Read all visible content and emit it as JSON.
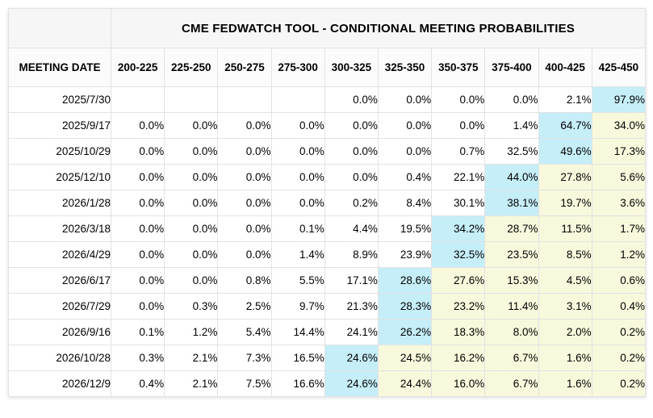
{
  "title": "CME FEDWATCH TOOL - CONDITIONAL MEETING PROBABILITIES",
  "colors": {
    "highlight_blue": "#c6eef9",
    "highlight_yellow": "#f8f8dc",
    "header_bg": "#f6f6f6",
    "grid_line": "#e2e2e2"
  },
  "table": {
    "corner_label": "MEETING DATE",
    "rate_ranges": [
      "200-225",
      "225-250",
      "250-275",
      "275-300",
      "300-325",
      "325-350",
      "350-375",
      "375-400",
      "400-425",
      "425-450"
    ],
    "rows": [
      {
        "date": "2025/7/30",
        "values": [
          "",
          "",
          "",
          "",
          "0.0%",
          "0.0%",
          "0.0%",
          "0.0%",
          "2.1%",
          "97.9%"
        ],
        "highlights": [
          "none",
          "none",
          "none",
          "none",
          "none",
          "none",
          "none",
          "none",
          "none",
          "blue"
        ]
      },
      {
        "date": "2025/9/17",
        "values": [
          "0.0%",
          "0.0%",
          "0.0%",
          "0.0%",
          "0.0%",
          "0.0%",
          "0.0%",
          "1.4%",
          "64.7%",
          "34.0%"
        ],
        "highlights": [
          "none",
          "none",
          "none",
          "none",
          "none",
          "none",
          "none",
          "none",
          "blue",
          "yellow"
        ]
      },
      {
        "date": "2025/10/29",
        "values": [
          "0.0%",
          "0.0%",
          "0.0%",
          "0.0%",
          "0.0%",
          "0.0%",
          "0.7%",
          "32.5%",
          "49.6%",
          "17.3%"
        ],
        "highlights": [
          "none",
          "none",
          "none",
          "none",
          "none",
          "none",
          "none",
          "none",
          "blue",
          "yellow"
        ]
      },
      {
        "date": "2025/12/10",
        "values": [
          "0.0%",
          "0.0%",
          "0.0%",
          "0.0%",
          "0.0%",
          "0.4%",
          "22.1%",
          "44.0%",
          "27.8%",
          "5.6%"
        ],
        "highlights": [
          "none",
          "none",
          "none",
          "none",
          "none",
          "none",
          "none",
          "blue",
          "yellow",
          "yellow"
        ]
      },
      {
        "date": "2026/1/28",
        "values": [
          "0.0%",
          "0.0%",
          "0.0%",
          "0.0%",
          "0.2%",
          "8.4%",
          "30.1%",
          "38.1%",
          "19.7%",
          "3.6%"
        ],
        "highlights": [
          "none",
          "none",
          "none",
          "none",
          "none",
          "none",
          "none",
          "blue",
          "yellow",
          "yellow"
        ]
      },
      {
        "date": "2026/3/18",
        "values": [
          "0.0%",
          "0.0%",
          "0.0%",
          "0.1%",
          "4.4%",
          "19.5%",
          "34.2%",
          "28.7%",
          "11.5%",
          "1.7%"
        ],
        "highlights": [
          "none",
          "none",
          "none",
          "none",
          "none",
          "none",
          "blue",
          "yellow",
          "yellow",
          "yellow"
        ]
      },
      {
        "date": "2026/4/29",
        "values": [
          "0.0%",
          "0.0%",
          "0.0%",
          "1.4%",
          "8.9%",
          "23.9%",
          "32.5%",
          "23.5%",
          "8.5%",
          "1.2%"
        ],
        "highlights": [
          "none",
          "none",
          "none",
          "none",
          "none",
          "none",
          "blue",
          "yellow",
          "yellow",
          "yellow"
        ]
      },
      {
        "date": "2026/6/17",
        "values": [
          "0.0%",
          "0.0%",
          "0.8%",
          "5.5%",
          "17.1%",
          "28.6%",
          "27.6%",
          "15.3%",
          "4.5%",
          "0.6%"
        ],
        "highlights": [
          "none",
          "none",
          "none",
          "none",
          "none",
          "blue",
          "yellow",
          "yellow",
          "yellow",
          "yellow"
        ]
      },
      {
        "date": "2026/7/29",
        "values": [
          "0.0%",
          "0.3%",
          "2.5%",
          "9.7%",
          "21.3%",
          "28.3%",
          "23.2%",
          "11.4%",
          "3.1%",
          "0.4%"
        ],
        "highlights": [
          "none",
          "none",
          "none",
          "none",
          "none",
          "blue",
          "yellow",
          "yellow",
          "yellow",
          "yellow"
        ]
      },
      {
        "date": "2026/9/16",
        "values": [
          "0.1%",
          "1.2%",
          "5.4%",
          "14.4%",
          "24.1%",
          "26.2%",
          "18.3%",
          "8.0%",
          "2.0%",
          "0.2%"
        ],
        "highlights": [
          "none",
          "none",
          "none",
          "none",
          "none",
          "blue",
          "yellow",
          "yellow",
          "yellow",
          "yellow"
        ]
      },
      {
        "date": "2026/10/28",
        "values": [
          "0.3%",
          "2.1%",
          "7.3%",
          "16.5%",
          "24.6%",
          "24.5%",
          "16.2%",
          "6.7%",
          "1.6%",
          "0.2%"
        ],
        "highlights": [
          "none",
          "none",
          "none",
          "none",
          "blue",
          "yellow",
          "yellow",
          "yellow",
          "yellow",
          "yellow"
        ]
      },
      {
        "date": "2026/12/9",
        "values": [
          "0.4%",
          "2.1%",
          "7.5%",
          "16.6%",
          "24.6%",
          "24.4%",
          "16.0%",
          "6.7%",
          "1.6%",
          "0.2%"
        ],
        "highlights": [
          "none",
          "none",
          "none",
          "none",
          "blue",
          "yellow",
          "yellow",
          "yellow",
          "yellow",
          "yellow"
        ]
      }
    ]
  },
  "chart_data": {
    "type": "table",
    "title": "CME FEDWATCH TOOL - CONDITIONAL MEETING PROBABILITIES",
    "row_label": "MEETING DATE",
    "columns": [
      "200-225",
      "225-250",
      "250-275",
      "275-300",
      "300-325",
      "325-350",
      "350-375",
      "375-400",
      "400-425",
      "425-450"
    ],
    "rows": [
      "2025/7/30",
      "2025/9/17",
      "2025/10/29",
      "2025/12/10",
      "2026/1/28",
      "2026/3/18",
      "2026/4/29",
      "2026/6/17",
      "2026/7/29",
      "2026/9/16",
      "2026/10/28",
      "2026/12/9"
    ],
    "values_pct": [
      [
        null,
        null,
        null,
        null,
        0.0,
        0.0,
        0.0,
        0.0,
        2.1,
        97.9
      ],
      [
        0.0,
        0.0,
        0.0,
        0.0,
        0.0,
        0.0,
        0.0,
        1.4,
        64.7,
        34.0
      ],
      [
        0.0,
        0.0,
        0.0,
        0.0,
        0.0,
        0.0,
        0.7,
        32.5,
        49.6,
        17.3
      ],
      [
        0.0,
        0.0,
        0.0,
        0.0,
        0.0,
        0.4,
        22.1,
        44.0,
        27.8,
        5.6
      ],
      [
        0.0,
        0.0,
        0.0,
        0.0,
        0.2,
        8.4,
        30.1,
        38.1,
        19.7,
        3.6
      ],
      [
        0.0,
        0.0,
        0.0,
        0.1,
        4.4,
        19.5,
        34.2,
        28.7,
        11.5,
        1.7
      ],
      [
        0.0,
        0.0,
        0.0,
        1.4,
        8.9,
        23.9,
        32.5,
        23.5,
        8.5,
        1.2
      ],
      [
        0.0,
        0.0,
        0.8,
        5.5,
        17.1,
        28.6,
        27.6,
        15.3,
        4.5,
        0.6
      ],
      [
        0.0,
        0.3,
        2.5,
        9.7,
        21.3,
        28.3,
        23.2,
        11.4,
        3.1,
        0.4
      ],
      [
        0.1,
        1.2,
        5.4,
        14.4,
        24.1,
        26.2,
        18.3,
        8.0,
        2.0,
        0.2
      ],
      [
        0.3,
        2.1,
        7.3,
        16.5,
        24.6,
        24.5,
        16.2,
        6.7,
        1.6,
        0.2
      ],
      [
        0.4,
        2.1,
        7.5,
        16.6,
        24.6,
        24.4,
        16.0,
        6.7,
        1.6,
        0.2
      ]
    ]
  }
}
